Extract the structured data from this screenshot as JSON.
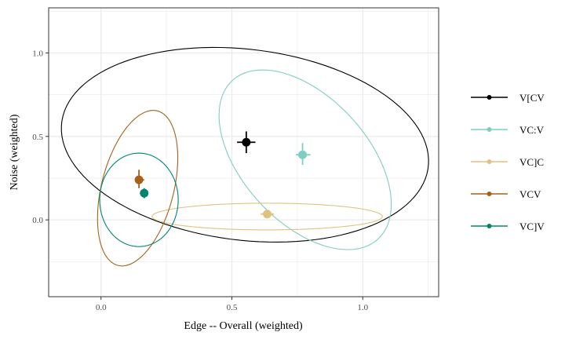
{
  "chart_data": {
    "type": "scatter",
    "title": "",
    "xlabel": "Edge -- Overall (weighted)",
    "ylabel": "Noise (weighted)",
    "xlim": [
      -0.2,
      1.29
    ],
    "ylim": [
      -0.46,
      1.27
    ],
    "x_ticks": [
      0.0,
      0.5,
      1.0
    ],
    "y_ticks": [
      0.0,
      0.5,
      1.0
    ],
    "x_tick_labels": [
      "0.0",
      "0.5",
      "1.0"
    ],
    "y_tick_labels": [
      "0.0",
      "0.5",
      "1.0"
    ],
    "grid": true,
    "legend_position": "right",
    "series": [
      {
        "name": "V[CV",
        "color": "#000000",
        "point": {
          "x": 0.555,
          "y": 0.465
        },
        "x_err": [
          0.52,
          0.59
        ],
        "y_err": [
          0.4,
          0.53
        ],
        "ellipse": {
          "cx": 0.55,
          "cy": 0.45,
          "rx": 0.72,
          "ry": 0.56,
          "angle_deg": -21
        }
      },
      {
        "name": "VC:V",
        "color": "#80CDC1",
        "point": {
          "x": 0.77,
          "y": 0.39
        },
        "x_err": [
          0.745,
          0.8
        ],
        "y_err": [
          0.33,
          0.46
        ],
        "ellipse": {
          "cx": 0.78,
          "cy": 0.36,
          "rx": 0.57,
          "ry": 0.27,
          "angle_deg": -68
        }
      },
      {
        "name": "VC]C",
        "color": "#DFC27D",
        "point": {
          "x": 0.635,
          "y": 0.035
        },
        "x_err": [
          0.61,
          0.66
        ],
        "y_err": [
          0.015,
          0.06
        ],
        "ellipse": {
          "cx": 0.635,
          "cy": 0.02,
          "rx": 0.44,
          "ry": 0.08,
          "angle_deg": 0
        }
      },
      {
        "name": "VCV",
        "color": "#A6611A",
        "point": {
          "x": 0.145,
          "y": 0.24
        },
        "x_err": [
          0.13,
          0.165
        ],
        "y_err": [
          0.19,
          0.3
        ],
        "ellipse": {
          "cx": 0.14,
          "cy": 0.19,
          "rx": 0.47,
          "ry": 0.14,
          "angle_deg": 82
        }
      },
      {
        "name": "VC]V",
        "color": "#018571",
        "point": {
          "x": 0.165,
          "y": 0.16
        },
        "x_err": [
          0.155,
          0.175
        ],
        "y_err": [
          0.13,
          0.19
        ],
        "ellipse": {
          "cx": 0.145,
          "cy": 0.12,
          "rx": 0.15,
          "ry": 0.28,
          "angle_deg": 0
        }
      }
    ]
  }
}
